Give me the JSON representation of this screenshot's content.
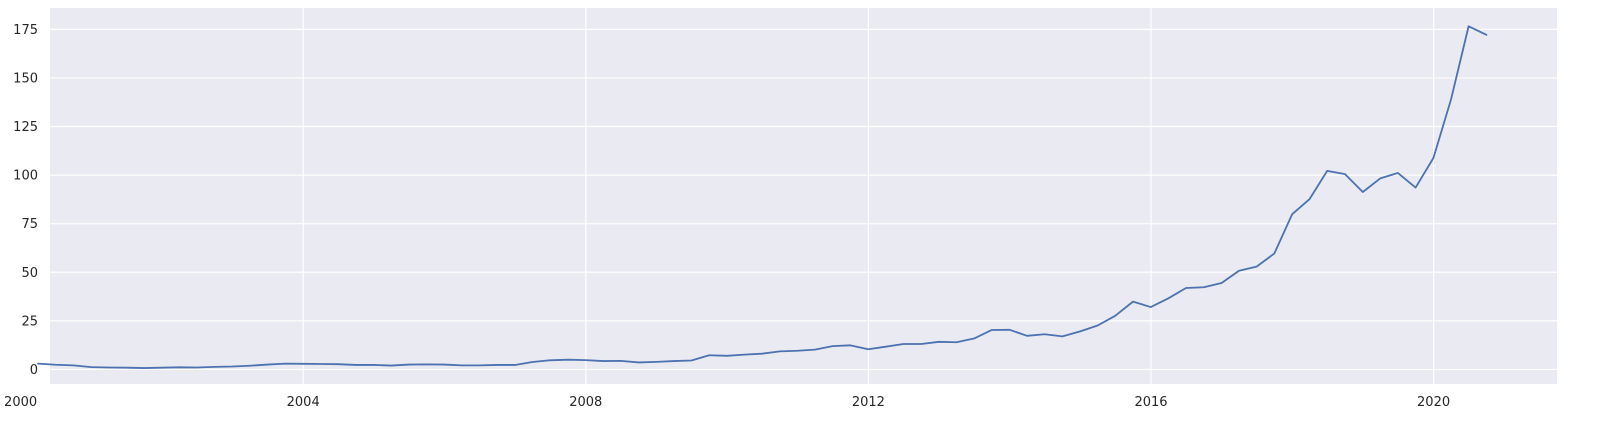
{
  "chart_data": {
    "type": "line",
    "title": "",
    "xlabel": "",
    "ylabel": "",
    "x_axis_type": "date",
    "xlim": [
      "2000-06-01",
      "2021-09-30"
    ],
    "ylim": [
      -7.5,
      186
    ],
    "x_ticks": [
      {
        "date": "2000-01-01",
        "label": "2000"
      },
      {
        "date": "2004-01-01",
        "label": "2004"
      },
      {
        "date": "2008-01-01",
        "label": "2008"
      },
      {
        "date": "2012-01-01",
        "label": "2012"
      },
      {
        "date": "2016-01-01",
        "label": "2016"
      },
      {
        "date": "2020-01-01",
        "label": "2020"
      }
    ],
    "y_ticks": [
      0,
      25,
      50,
      75,
      100,
      125,
      150,
      175
    ],
    "grid": true,
    "background_color": "#eaeaf2",
    "series": [
      {
        "color": "#4c72b0",
        "x": [
          "2000-03-31",
          "2000-06-30",
          "2000-09-30",
          "2000-12-31",
          "2001-03-31",
          "2001-06-30",
          "2001-09-30",
          "2001-12-31",
          "2002-03-31",
          "2002-06-30",
          "2002-09-30",
          "2002-12-31",
          "2003-03-31",
          "2003-06-30",
          "2003-09-30",
          "2003-12-31",
          "2004-03-31",
          "2004-06-30",
          "2004-09-30",
          "2004-12-31",
          "2005-03-31",
          "2005-06-30",
          "2005-09-30",
          "2005-12-31",
          "2006-03-31",
          "2006-06-30",
          "2006-09-30",
          "2006-12-31",
          "2007-03-31",
          "2007-06-30",
          "2007-09-30",
          "2007-12-31",
          "2008-03-31",
          "2008-06-30",
          "2008-09-30",
          "2008-12-31",
          "2009-03-31",
          "2009-06-30",
          "2009-09-30",
          "2009-12-31",
          "2010-03-31",
          "2010-06-30",
          "2010-09-30",
          "2010-12-31",
          "2011-03-31",
          "2011-06-30",
          "2011-09-30",
          "2011-12-31",
          "2012-03-31",
          "2012-06-30",
          "2012-09-30",
          "2012-12-31",
          "2013-03-31",
          "2013-06-30",
          "2013-09-30",
          "2013-12-31",
          "2014-03-31",
          "2014-06-30",
          "2014-09-30",
          "2014-12-31",
          "2015-03-31",
          "2015-06-30",
          "2015-09-30",
          "2015-12-31",
          "2016-03-31",
          "2016-06-30",
          "2016-09-30",
          "2016-12-31",
          "2017-03-31",
          "2017-06-30",
          "2017-09-30",
          "2017-12-31",
          "2018-03-31",
          "2018-06-30",
          "2018-09-30",
          "2018-12-31",
          "2019-03-31",
          "2019-06-30",
          "2019-09-30",
          "2019-12-31",
          "2020-03-31",
          "2020-06-30",
          "2020-09-30"
        ],
        "y": [
          3.0,
          2.4,
          2.1,
          1.2,
          1.0,
          0.9,
          0.7,
          0.9,
          1.1,
          1.0,
          1.3,
          1.5,
          1.9,
          2.5,
          3.0,
          2.9,
          2.8,
          2.7,
          2.3,
          2.3,
          2.0,
          2.5,
          2.6,
          2.5,
          2.1,
          2.1,
          2.3,
          2.3,
          3.8,
          4.7,
          5.0,
          4.8,
          4.3,
          4.4,
          3.6,
          3.9,
          4.3,
          4.6,
          7.3,
          7.0,
          7.6,
          8.1,
          9.3,
          9.6,
          10.2,
          12.0,
          12.4,
          10.4,
          11.7,
          13.1,
          13.1,
          14.2,
          14.0,
          15.9,
          20.3,
          20.4,
          17.3,
          18.1,
          17.0,
          19.6,
          22.6,
          27.6,
          34.9,
          32.1,
          36.6,
          41.9,
          42.3,
          44.5,
          50.8,
          52.9,
          59.7,
          79.9,
          87.7,
          102.2,
          100.5,
          91.3,
          98.3,
          101.1,
          93.6,
          108.8,
          138.9,
          176.6,
          172.2
        ]
      }
    ]
  }
}
